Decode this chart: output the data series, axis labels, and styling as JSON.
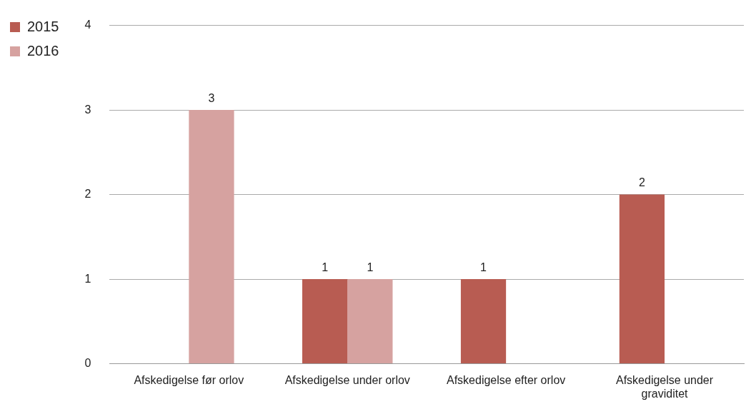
{
  "chart_data": {
    "type": "bar",
    "categories": [
      "Afskedigelse før orlov",
      "Afskedigelse under orlov",
      "Afskedigelse efter orlov",
      "Afskedigelse under graviditet"
    ],
    "series": [
      {
        "name": "2015",
        "color": "#b85c52",
        "values": [
          null,
          1,
          1,
          2
        ]
      },
      {
        "name": "2016",
        "color": "#d6a2a0",
        "values": [
          3,
          1,
          null,
          null
        ]
      }
    ],
    "ylim": [
      0,
      4
    ],
    "yticks": [
      0,
      1,
      2,
      3,
      4
    ],
    "grid": "y",
    "legend": "top left",
    "data_labels": true
  }
}
